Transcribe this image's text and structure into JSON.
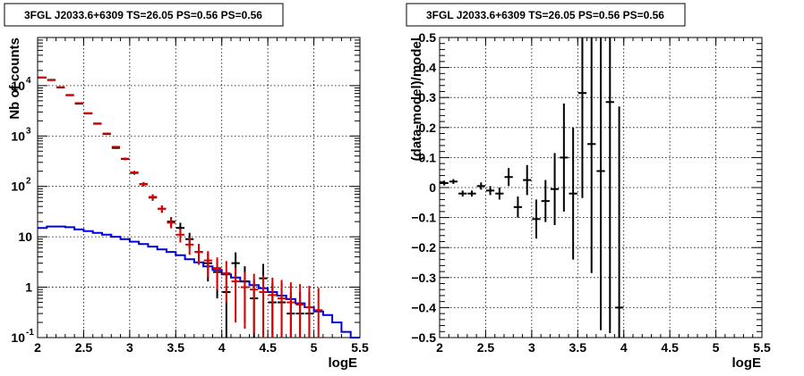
{
  "chart_data": [
    {
      "type": "histogram-errorbars",
      "title": "3FGL J2033.6+6309 TS=26.05 PS=0.56 PS=0.56",
      "xlabel": "logE",
      "ylabel": "Nb of counts",
      "xlim": [
        2,
        5.5
      ],
      "ylim": [
        0.1,
        90000
      ],
      "yscale": "log",
      "grid": true,
      "x_ticks": [
        "2",
        "2.5",
        "3",
        "3.5",
        "4",
        "4.5",
        "5",
        "5.5"
      ],
      "y_ticks": [
        {
          "value": 0.1,
          "base": "10",
          "exp": "-1"
        },
        {
          "value": 1,
          "base": "1",
          "exp": ""
        },
        {
          "value": 10,
          "base": "10",
          "exp": ""
        },
        {
          "value": 100,
          "base": "10",
          "exp": "2"
        },
        {
          "value": 1000,
          "base": "10",
          "exp": "3"
        },
        {
          "value": 10000,
          "base": "10",
          "exp": "4"
        }
      ],
      "bin_edges": [
        2.0,
        2.1,
        2.2,
        2.3,
        2.4,
        2.5,
        2.6,
        2.7,
        2.8,
        2.9,
        3.0,
        3.1,
        3.2,
        3.3,
        3.4,
        3.5,
        3.6,
        3.7,
        3.8,
        3.9,
        4.0,
        4.1,
        4.2,
        4.3,
        4.4,
        4.5,
        4.6,
        4.7,
        4.8,
        4.9,
        5.0,
        5.1,
        5.2,
        5.3,
        5.4,
        5.5
      ],
      "series": [
        {
          "color": "#000000",
          "x": [
            2.05,
            2.15,
            2.25,
            2.35,
            2.45,
            2.55,
            2.65,
            2.75,
            2.85,
            2.95,
            3.05,
            3.15,
            3.25,
            3.35,
            3.45,
            3.55,
            3.65,
            3.75,
            3.85,
            3.95,
            4.05,
            4.15,
            4.25,
            4.35,
            4.45,
            4.55,
            4.65,
            4.75,
            4.85,
            4.95
          ],
          "y": [
            14500,
            13000,
            9200,
            6500,
            4400,
            2800,
            1750,
            1100,
            580,
            350,
            185,
            110,
            60,
            36,
            20,
            15,
            9,
            5,
            3,
            2,
            0.8,
            3,
            1.3,
            0.6,
            1.5,
            0.5,
            0.5,
            0.3,
            0.3,
            0.3
          ],
          "yerr_low": [
            120,
            115,
            96,
            80,
            66,
            53,
            42,
            33,
            24,
            19,
            14,
            10,
            8,
            6,
            4.5,
            4,
            3,
            2.2,
            1.7,
            1.4,
            0.8,
            1.7,
            1.1,
            0.6,
            1.2,
            0.5,
            0.5,
            0.3,
            0.3,
            0.3
          ],
          "yerr_high": [
            120,
            115,
            96,
            80,
            66,
            53,
            42,
            33,
            24,
            19,
            14,
            10,
            8,
            6,
            4.5,
            4,
            3,
            2.2,
            1.7,
            1.4,
            1.0,
            1.9,
            1.3,
            0.8,
            1.4,
            0.7,
            0.7,
            0.5,
            0.5,
            0.5
          ]
        },
        {
          "color": "#dd0000",
          "x": [
            2.05,
            2.15,
            2.25,
            2.35,
            2.45,
            2.55,
            2.65,
            2.75,
            2.85,
            2.95,
            3.05,
            3.15,
            3.25,
            3.35,
            3.45,
            3.55,
            3.65,
            3.75,
            3.85,
            3.95,
            4.05,
            4.15,
            4.25,
            4.35,
            4.45,
            4.55,
            4.65,
            4.75,
            4.85,
            4.95,
            5.05
          ],
          "y": [
            14400,
            12800,
            9300,
            6400,
            4500,
            2850,
            1780,
            1120,
            610,
            355,
            190,
            112,
            62,
            36,
            19,
            11,
            7,
            5,
            3.4,
            2.4,
            1.9,
            1.3,
            1.0,
            0.9,
            0.8,
            0.7,
            0.6,
            0.5,
            0.45,
            0.4,
            0.35
          ],
          "yerr_low": [
            120,
            113,
            96,
            80,
            67,
            53,
            42,
            33,
            25,
            19,
            14,
            10,
            8,
            6,
            4.3,
            3.3,
            2.6,
            2.2,
            1.8,
            1.5,
            1.4,
            1.1,
            0.85,
            0.78,
            0.72,
            0.66,
            0.58,
            0.48,
            0.44,
            0.39,
            0.34
          ],
          "yerr_high": [
            120,
            113,
            96,
            80,
            67,
            53,
            42,
            33,
            25,
            19,
            14,
            10,
            8,
            6,
            4.3,
            3.3,
            2.6,
            2.2,
            1.8,
            1.5,
            1.4,
            1.1,
            1.0,
            0.95,
            0.9,
            0.85,
            0.8,
            0.75,
            0.7,
            0.66,
            0.62
          ]
        },
        {
          "color": "#0000dd",
          "type": "step",
          "values": [
            15,
            16,
            16,
            15.5,
            14,
            13,
            12,
            11,
            10,
            9,
            8,
            7.2,
            6.4,
            5.6,
            5,
            4.3,
            3.6,
            3.1,
            2.6,
            2.2,
            1.8,
            1.55,
            1.3,
            1.1,
            0.95,
            0.8,
            0.68,
            0.58,
            0.48,
            0.4,
            0.33,
            0.28,
            0.2,
            0.13,
            0.1
          ]
        }
      ]
    },
    {
      "type": "errorbars",
      "title": "3FGL J2033.6+6309 TS=26.05 PS=0.56 PS=0.56",
      "xlabel": "logE",
      "ylabel": "(data-model)/model",
      "xlim": [
        2,
        5.5
      ],
      "ylim": [
        -0.5,
        0.5
      ],
      "grid": true,
      "x_ticks": [
        "2",
        "2.5",
        "3",
        "3.5",
        "4",
        "4.5",
        "5",
        "5.5"
      ],
      "y_ticks": [
        "−0.5",
        "−0.4",
        "−0.3",
        "−0.2",
        "−0.1",
        "0",
        "0.1",
        "0.2",
        "0.3",
        "0.4",
        "0.5"
      ],
      "color": "#000000",
      "x": [
        2.05,
        2.15,
        2.25,
        2.35,
        2.45,
        2.55,
        2.65,
        2.75,
        2.85,
        2.95,
        3.05,
        3.15,
        3.25,
        3.35,
        3.45,
        3.55,
        3.65,
        3.75,
        3.85,
        3.95
      ],
      "y": [
        0.015,
        0.02,
        -0.02,
        -0.02,
        0.005,
        -0.01,
        -0.02,
        0.035,
        -0.065,
        0.025,
        -0.105,
        -0.045,
        -0.005,
        0.1,
        -0.02,
        0.315,
        0.145,
        0.055,
        0.285,
        -0.4
      ],
      "yerr": [
        0.008,
        0.008,
        0.01,
        0.01,
        0.012,
        0.015,
        0.02,
        0.03,
        0.035,
        0.05,
        0.065,
        0.07,
        0.12,
        0.18,
        0.22,
        0.35,
        0.43,
        0.53,
        0.77,
        0.67
      ]
    }
  ]
}
